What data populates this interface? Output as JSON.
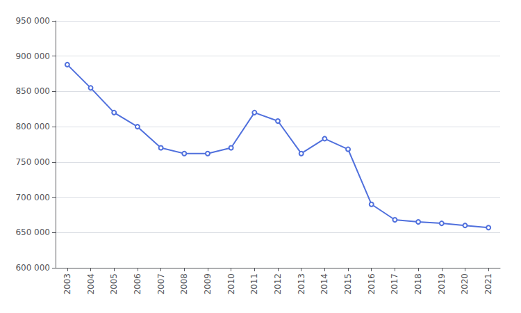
{
  "chart_data": {
    "type": "line",
    "x": [
      2003,
      2004,
      2005,
      2006,
      2007,
      2008,
      2009,
      2010,
      2011,
      2012,
      2013,
      2014,
      2015,
      2016,
      2017,
      2018,
      2019,
      2020,
      2021
    ],
    "values": [
      888000,
      855000,
      820000,
      800000,
      770000,
      762000,
      762000,
      770000,
      820000,
      808000,
      762000,
      783000,
      768000,
      690000,
      668000,
      665000,
      663000,
      660000,
      657000
    ],
    "xlim": [
      2002.5,
      2021.5
    ],
    "xticks": [
      2003,
      2004,
      2005,
      2006,
      2007,
      2008,
      2009,
      2010,
      2011,
      2012,
      2013,
      2014,
      2015,
      2016,
      2017,
      2018,
      2019,
      2020,
      2021
    ],
    "ylim": [
      600000,
      950000
    ],
    "yticks": [
      {
        "value": 600000,
        "label": "600 000"
      },
      {
        "value": 650000,
        "label": "650 000"
      },
      {
        "value": 700000,
        "label": "700 000"
      },
      {
        "value": 750000,
        "label": "750 000"
      },
      {
        "value": 800000,
        "label": "800 000"
      },
      {
        "value": 850000,
        "label": "850 000"
      },
      {
        "value": 900000,
        "label": "900 000"
      },
      {
        "value": 950000,
        "label": "950 000"
      }
    ],
    "grid": true
  }
}
